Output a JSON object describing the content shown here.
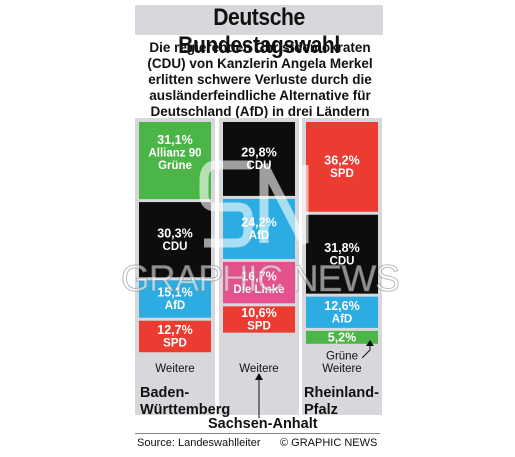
{
  "header": {
    "title": "Deutsche Bundestagswahl",
    "subtitle_lines": [
      "Die regierenden Christdemokraten",
      "(CDU) von Kanzlerin Angela Merkel",
      "erlitten schwere Verluste durch die",
      "ausländerfeindliche Alternative für",
      "Deutschland (AfD) in drei Ländern"
    ]
  },
  "chart_data": {
    "type": "bar",
    "stacked": true,
    "unit": "%",
    "columns": [
      {
        "state_lines": [
          "Baden-",
          "Württemberg"
        ],
        "segments": [
          {
            "party": "Allianz 90 Grüne",
            "label_lines": [
              "31,1%",
              "Allianz 90",
              "Grüne"
            ],
            "value": 31.1,
            "color": "#4bb548"
          },
          {
            "party": "CDU",
            "label_lines": [
              "30,3%",
              "CDU"
            ],
            "value": 30.3,
            "color": "#0d0d0d"
          },
          {
            "party": "AfD",
            "label_lines": [
              "15,1%",
              "AfD"
            ],
            "value": 15.1,
            "color": "#2bace2"
          },
          {
            "party": "SPD",
            "label_lines": [
              "12,7%",
              "SPD"
            ],
            "value": 12.7,
            "color": "#ec3c32"
          },
          {
            "party": "Weitere",
            "label_lines": [
              "Weitere"
            ],
            "value": 10.8,
            "color": "#d7d8dc"
          }
        ]
      },
      {
        "state_lines": [
          "Sachsen-Anhalt"
        ],
        "segments": [
          {
            "party": "CDU",
            "label_lines": [
              "29,8%",
              "CDU"
            ],
            "value": 29.8,
            "color": "#0d0d0d"
          },
          {
            "party": "AfD",
            "label_lines": [
              "24,2%",
              "AfD"
            ],
            "value": 24.2,
            "color": "#2bace2"
          },
          {
            "party": "Die Linke",
            "label_lines": [
              "16,7%",
              "Die Linke"
            ],
            "value": 16.7,
            "color": "#e5508f"
          },
          {
            "party": "SPD",
            "label_lines": [
              "10,6%",
              "SPD"
            ],
            "value": 10.6,
            "color": "#ec3c32"
          },
          {
            "party": "Weitere",
            "label_lines": [
              "Weitere"
            ],
            "value": 18.7,
            "color": "#d7d8dc"
          }
        ]
      },
      {
        "state_lines": [
          "Rheinland-",
          "Pfalz"
        ],
        "segments": [
          {
            "party": "SPD",
            "label_lines": [
              "36,2%",
              "SPD"
            ],
            "value": 36.2,
            "color": "#ec3c32"
          },
          {
            "party": "CDU",
            "label_lines": [
              "31,8%",
              "CDU"
            ],
            "value": 31.8,
            "color": "#0d0d0d"
          },
          {
            "party": "AfD",
            "label_lines": [
              "12,6%",
              "AfD"
            ],
            "value": 12.6,
            "color": "#2bace2"
          },
          {
            "party": "Grüne",
            "label_lines": [
              "5,2%"
            ],
            "value": 5.2,
            "color": "#4bb548"
          },
          {
            "party": "Weitere",
            "label_lines": [
              "Grüne",
              "Weitere"
            ],
            "value": 14.2,
            "color": "#d7d8dc"
          }
        ]
      }
    ]
  },
  "footer": {
    "source": "Source: Landeswahlleiter",
    "credit": "© GRAPHIC NEWS"
  },
  "watermark": "GRAPHIC NEWS"
}
